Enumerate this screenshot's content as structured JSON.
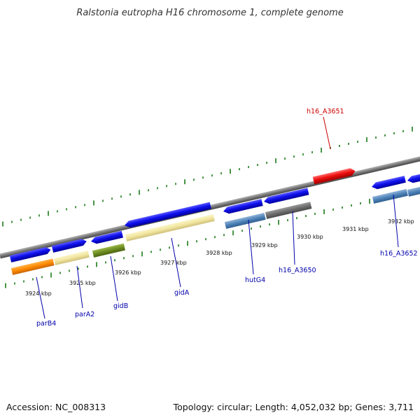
{
  "title": "Ralstonia eutropha H16 chromosome 1, complete genome",
  "footer": {
    "accession": "Accession: NC_008313",
    "summary": "Topology: circular; Length: 4,052,032 bp; Genes: 3,711"
  },
  "colors": {
    "label_blue": "#0000aa",
    "label_red": "#cc0000",
    "tick_green": "#1a7a1a",
    "backbone": "#777777"
  },
  "kbp_labels": [
    "3924 kbp",
    "3925 kbp",
    "3926 kbp",
    "3927 kbp",
    "3928 kbp",
    "3929 kbp",
    "3930 kbp",
    "3931 kbp",
    "3932 kbp"
  ],
  "genes": [
    {
      "name": "parB4",
      "color": "blue"
    },
    {
      "name": "parA2",
      "color": "blue"
    },
    {
      "name": "gidB",
      "color": "blue"
    },
    {
      "name": "gidA",
      "color": "blue"
    },
    {
      "name": "hutG4",
      "color": "blue"
    },
    {
      "name": "h16_A3650",
      "color": "blue"
    },
    {
      "name": "h16_A3651",
      "color": "red"
    },
    {
      "name": "h16_A3652",
      "color": "blue"
    }
  ]
}
